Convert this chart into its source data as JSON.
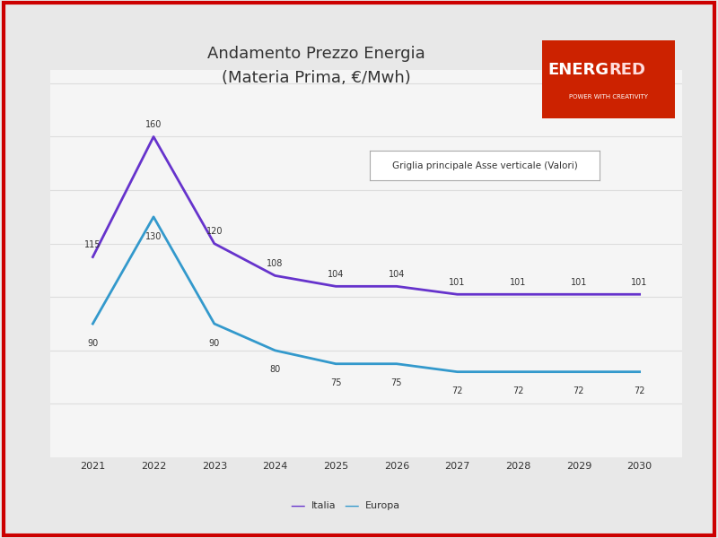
{
  "title_line1": "Andamento Prezzo Energia",
  "title_line2": "(Materia Prima, €/Mwh)",
  "years": [
    2021,
    2022,
    2023,
    2024,
    2025,
    2026,
    2027,
    2028,
    2029,
    2030
  ],
  "italia": [
    115,
    160,
    120,
    108,
    104,
    104,
    101,
    101,
    101,
    101
  ],
  "europa": [
    90,
    130,
    90,
    80,
    75,
    75,
    72,
    72,
    72,
    72
  ],
  "italia_color": "#6633cc",
  "europa_color": "#3399cc",
  "bg_color": "#e8e8e8",
  "chart_bg": "#f5f5f5",
  "grid_color": "#dddddd",
  "border_color": "#cc0000",
  "logo_bg": "#cc2200",
  "logo_text1": "ENERG",
  "logo_text2": "RED",
  "logo_sub": "POWER WITH CREATIVITY",
  "annotation_box_text": "Griglia principale Asse verticale (Valori)",
  "legend_italia": "Italia",
  "legend_europa": "Europa",
  "title_fontsize": 13,
  "axis_fontsize": 8,
  "label_fontsize": 7
}
